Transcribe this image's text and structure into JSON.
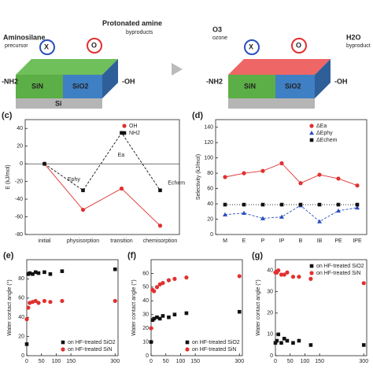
{
  "illustrations": [
    {
      "texts": [
        "Aminosilane",
        "precursor",
        "X",
        "O",
        "Protonated amine",
        "byproducts",
        "-NH2",
        "-OH",
        "SiN",
        "SiO2",
        "Si"
      ]
    },
    {
      "texts": [
        "O3",
        "ozone",
        "X",
        "O",
        "H2O",
        "byproduct",
        "-NH2",
        "-OH",
        "SiN",
        "SiO2"
      ]
    }
  ],
  "chart_data": [
    {
      "type": "line",
      "label": "(c)",
      "ylabel": "E (kJ/mol)",
      "categories": [
        "initial",
        "physisorption",
        "transition",
        "chemisorption"
      ],
      "series": [
        {
          "name": "OH",
          "color": "#e23030",
          "marker": "circle",
          "line": "solid",
          "values": [
            0,
            -52,
            -28,
            -70
          ]
        },
        {
          "name": "NH2",
          "color": "#111111",
          "marker": "square",
          "line": "dashed",
          "values": [
            0,
            -30,
            35,
            -30
          ]
        }
      ],
      "ylim": [
        -80,
        50
      ],
      "yticks": [
        -80,
        -60,
        -40,
        -20,
        0,
        20,
        40
      ],
      "legend": "upper right",
      "annotations": [
        "Ea",
        "Ephy",
        "Echem"
      ]
    },
    {
      "type": "line",
      "label": "(d)",
      "ylabel": "Selectivity (kJ/mol)",
      "categories": [
        "M",
        "E",
        "P",
        "IP",
        "B",
        "IB",
        "PE",
        "IPE"
      ],
      "series": [
        {
          "name": "ΔEa",
          "color": "#e23030",
          "marker": "circle",
          "line": "solid",
          "values": [
            75,
            80,
            83,
            93,
            67,
            78,
            73,
            64
          ]
        },
        {
          "name": "ΔEphy",
          "color": "#2a4fc0",
          "marker": "triangle",
          "line": "dashed",
          "values": [
            26,
            28,
            21,
            23,
            38,
            17,
            31,
            35
          ]
        },
        {
          "name": "ΔEchem",
          "color": "#111111",
          "marker": "square",
          "line": "dotted",
          "values": [
            39,
            39,
            39,
            39,
            39,
            39,
            39,
            39
          ]
        }
      ],
      "ylim": [
        0,
        150
      ],
      "yticks": [
        0,
        20,
        40,
        60,
        80,
        100,
        120,
        140
      ],
      "legend": "upper right"
    },
    {
      "type": "scatter",
      "label": "(e)",
      "ylabel": "Water contact angle (°)",
      "x": [
        0,
        5,
        10,
        20,
        30,
        40,
        60,
        80,
        120,
        300
      ],
      "series": [
        {
          "name": "on HF-treated SiO2",
          "color": "#111111",
          "marker": "square",
          "values": [
            12,
            85,
            86,
            85,
            87,
            86,
            87,
            85,
            88,
            90
          ]
        },
        {
          "name": "on HF-treated SiN",
          "color": "#e23030",
          "marker": "circle",
          "values": [
            38,
            50,
            55,
            56,
            57,
            55,
            57,
            56,
            57,
            57
          ]
        }
      ],
      "xlim": [
        0,
        310
      ],
      "xticks": [
        0,
        50,
        100,
        150,
        300
      ],
      "ylim": [
        0,
        100
      ],
      "yticks": [
        0,
        20,
        40,
        60,
        80
      ],
      "legend": "lower right"
    },
    {
      "type": "scatter",
      "label": "(f)",
      "ylabel": "Water contact angle (°)",
      "x": [
        0,
        5,
        10,
        20,
        30,
        40,
        60,
        80,
        120,
        300
      ],
      "series": [
        {
          "name": "on HF-treated SiO2",
          "color": "#111111",
          "marker": "square",
          "values": [
            10,
            26,
            27,
            28,
            27,
            29,
            28,
            30,
            31,
            32
          ]
        },
        {
          "name": "on HF-treated SiN",
          "color": "#e23030",
          "marker": "circle",
          "values": [
            20,
            48,
            47,
            50,
            52,
            53,
            55,
            56,
            57,
            58
          ]
        }
      ],
      "xlim": [
        0,
        310
      ],
      "xticks": [
        0,
        50,
        100,
        150,
        300
      ],
      "ylim": [
        0,
        70
      ],
      "yticks": [
        0,
        10,
        20,
        30,
        40,
        50,
        60
      ],
      "legend": "lower right"
    },
    {
      "type": "scatter",
      "label": "(g)",
      "ylabel": "Water contact angle (°)",
      "x": [
        0,
        5,
        10,
        20,
        30,
        40,
        60,
        80,
        120,
        300
      ],
      "series": [
        {
          "name": "on HF-treated SiO2",
          "color": "#111111",
          "marker": "square",
          "values": [
            6,
            7,
            10,
            6,
            8,
            7,
            6,
            7,
            5,
            5
          ]
        },
        {
          "name": "on HF-treated SiN",
          "color": "#e23030",
          "marker": "circle",
          "values": [
            39,
            39,
            40,
            38,
            38,
            39,
            37,
            37,
            36,
            34
          ]
        }
      ],
      "xlim": [
        0,
        310
      ],
      "xticks": [
        0,
        50,
        100,
        150,
        300
      ],
      "ylim": [
        0,
        45
      ],
      "yticks": [
        0,
        10,
        20,
        30,
        40
      ],
      "legend": "upper right"
    }
  ]
}
